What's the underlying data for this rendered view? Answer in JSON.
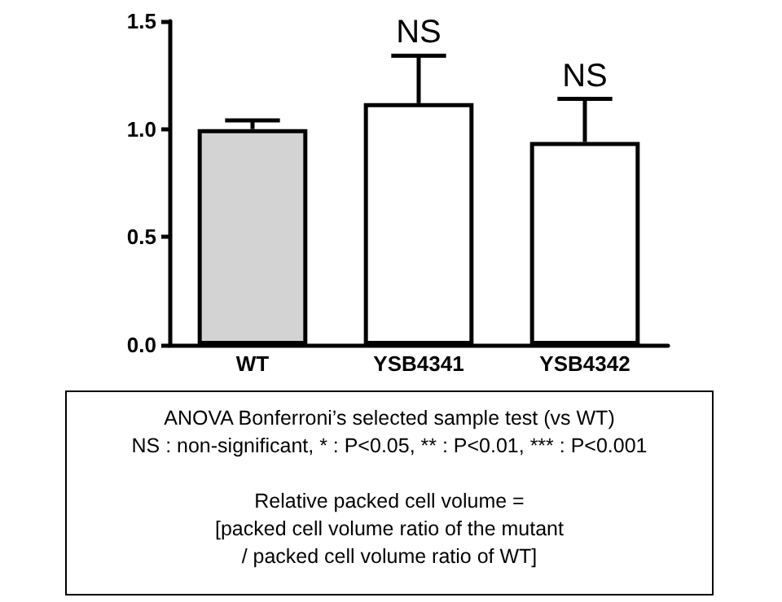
{
  "chart_data": {
    "type": "bar",
    "categories": [
      "WT",
      "YSB4341",
      "YSB4342"
    ],
    "values": [
      1.0,
      1.12,
      0.94
    ],
    "colors": [
      "#d3d3d3",
      "#ffffff",
      "#ffffff"
    ],
    "errors": [
      [
        1.0,
        1.04
      ],
      [
        1.12,
        1.34
      ],
      [
        0.94,
        1.14
      ]
    ],
    "ylim": [
      0,
      1.5
    ],
    "yticks": [
      {
        "value": 0,
        "label": "0.0"
      },
      0.5,
      {
        "value": 1,
        "label": "1.0"
      },
      1.5
    ],
    "grid": false,
    "annotations": [
      {
        "text": "NS",
        "x": "YSB4341",
        "y": 1.34
      },
      {
        "text": "NS",
        "x": "YSB4342",
        "y": 1.14
      },
      "ANOVA Bonferroni’s selected sample test (vs WT)",
      "NS : non-significant, * : P<0.05, ** : P<0.01, *** : P<0.001",
      "Relative packed cell volume =",
      "[packed cell volume ratio of the mutant",
      "/ packed cell volume ratio of WT]"
    ]
  }
}
